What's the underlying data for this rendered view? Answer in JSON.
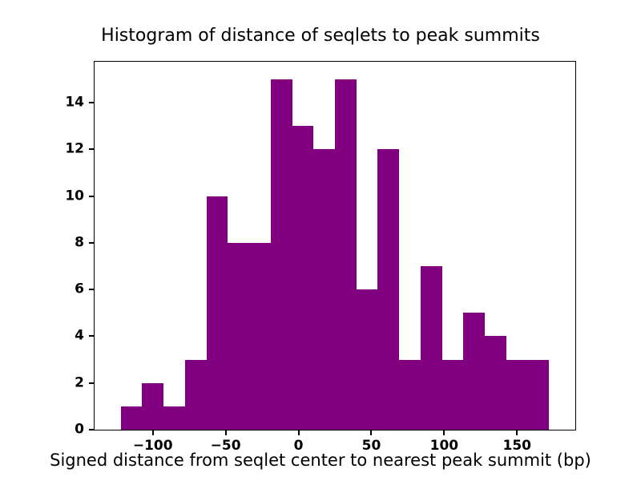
{
  "chart_data": {
    "type": "bar",
    "title": "Histogram of distance of seqlets to peak summits",
    "xlabel": "Signed distance from seqlet center to nearest peak summit (bp)",
    "ylabel": "",
    "bar_color": "#800080",
    "background_color": "#ffffff",
    "bin_start": -122,
    "bin_width": 14.7,
    "values": [
      1,
      2,
      1,
      3,
      10,
      8,
      8,
      15,
      13,
      12,
      15,
      6,
      12,
      3,
      7,
      3,
      5,
      4,
      3,
      3
    ],
    "bin_edges_note": "20 equal-width bins spanning approximately -122 to 172 bp",
    "xlim": [
      -140,
      190
    ],
    "ylim": [
      0,
      15.75
    ],
    "xticks": [
      -100,
      -50,
      0,
      50,
      100,
      150
    ],
    "yticks": [
      0,
      2,
      4,
      6,
      8,
      10,
      12,
      14
    ],
    "grid": false,
    "legend": null
  }
}
